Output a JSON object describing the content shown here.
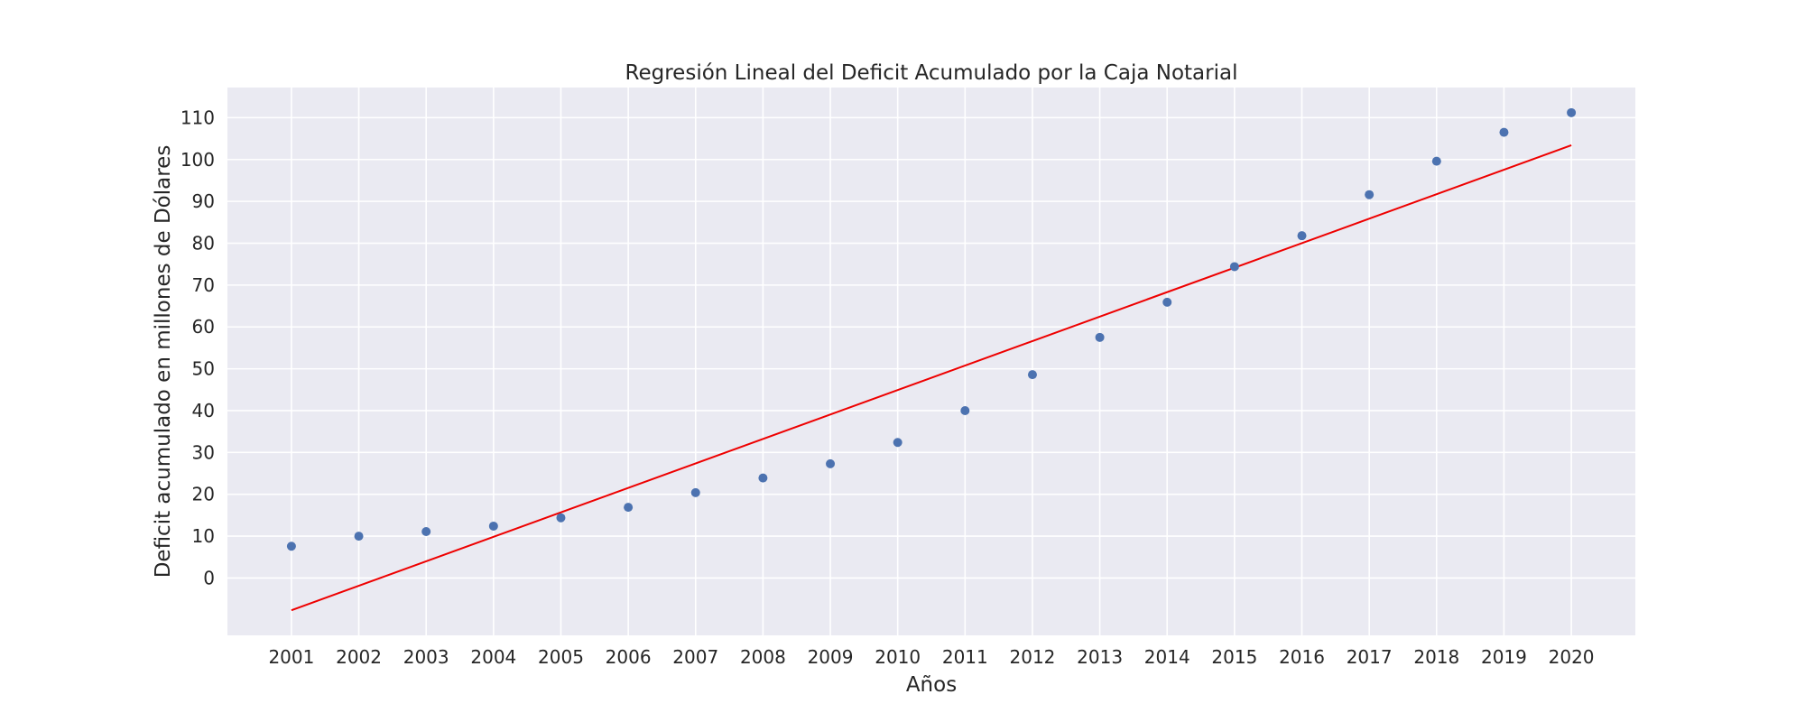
{
  "chart_data": {
    "type": "scatter",
    "title": "Regresión Lineal del Deficit Acumulado por la Caja Notarial",
    "xlabel": "Años",
    "ylabel": "Deficit acumulado en millones de Dólares",
    "x": [
      2001,
      2002,
      2003,
      2004,
      2005,
      2006,
      2007,
      2008,
      2009,
      2010,
      2011,
      2012,
      2013,
      2014,
      2015,
      2016,
      2017,
      2018,
      2019,
      2020
    ],
    "x_tick_labels": [
      "2001",
      "2002",
      "2003",
      "2004",
      "2005",
      "2006",
      "2007",
      "2008",
      "2009",
      "2010",
      "2011",
      "2012",
      "2013",
      "2014",
      "2015",
      "2016",
      "2017",
      "2018",
      "2019",
      "2020"
    ],
    "y_ticks": [
      0,
      10,
      20,
      30,
      40,
      50,
      60,
      70,
      80,
      90,
      100,
      110
    ],
    "y_tick_labels": [
      "0",
      "10",
      "20",
      "30",
      "40",
      "50",
      "60",
      "70",
      "80",
      "90",
      "100",
      "110"
    ],
    "xlim": [
      2000.05,
      2020.95
    ],
    "ylim": [
      -13.7,
      117.2
    ],
    "grid": true,
    "series": [
      {
        "kind": "scatter",
        "values": [
          7.6,
          10.0,
          11.1,
          12.4,
          14.4,
          16.9,
          20.4,
          23.9,
          27.3,
          32.4,
          40.0,
          48.6,
          57.5,
          65.9,
          74.4,
          81.8,
          91.6,
          99.6,
          106.5,
          111.2
        ],
        "color": "#4c72b0"
      },
      {
        "kind": "regression-line",
        "x": [
          2001,
          2020
        ],
        "values": [
          -7.7,
          103.4
        ],
        "color": "#ee0000"
      }
    ],
    "plot_background": "#eaeaf2",
    "grid_color": "#ffffff"
  }
}
